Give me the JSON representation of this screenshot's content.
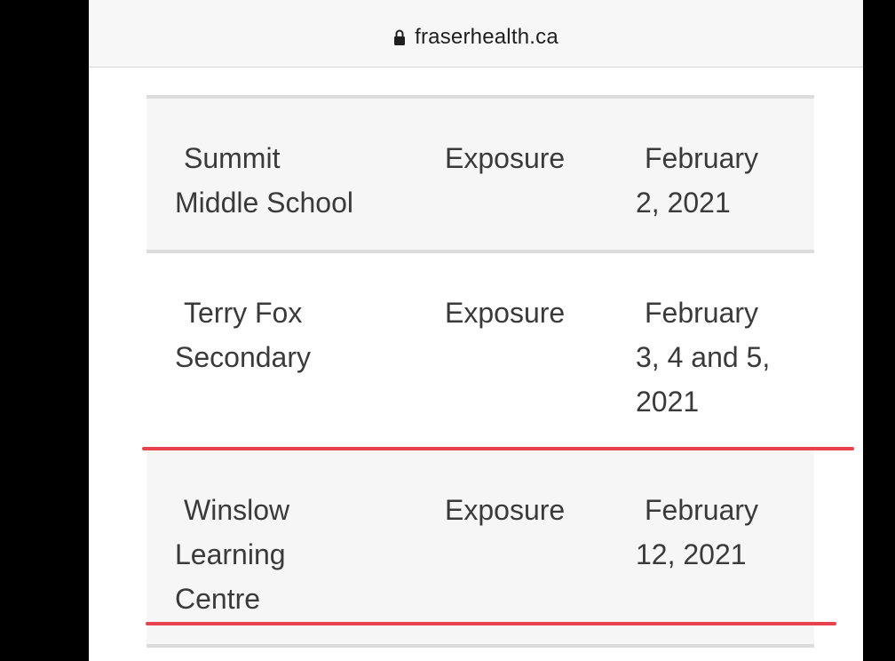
{
  "browser": {
    "url": "fraserhealth.ca"
  },
  "table": {
    "rows": [
      {
        "name_line1": "Summit",
        "name_line2": "Middle School",
        "name_line3": "",
        "type": "Exposure",
        "date_line1": "February",
        "date_line2": "2, 2021",
        "date_line3": ""
      },
      {
        "name_line1": "Terry Fox",
        "name_line2": "Secondary",
        "name_line3": "",
        "type": "Exposure",
        "date_line1": "February",
        "date_line2": "3, 4 and 5,",
        "date_line3": "2021"
      },
      {
        "name_line1": "Winslow",
        "name_line2": "Learning",
        "name_line3": "Centre",
        "type": "Exposure",
        "date_line1": "February",
        "date_line2": "12, 2021",
        "date_line3": ""
      }
    ]
  },
  "colors": {
    "highlight": "#e8424f",
    "row_shade": "#f6f6f6",
    "divider": "#dcdcdc"
  }
}
